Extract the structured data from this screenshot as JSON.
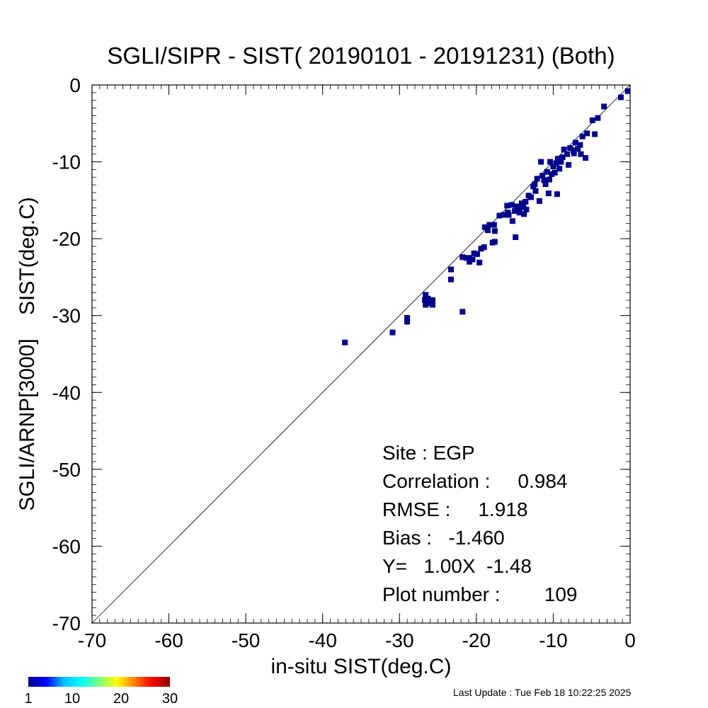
{
  "chart_data": {
    "type": "heatmap",
    "title": "SGLI/SIPR - SIST( 20190101 - 20191231) (Both)",
    "xlabel": "in-situ SIST(deg.C)",
    "ylabel": "SGLI/ARNP[3000]    SIST(deg.C)",
    "xlim": [
      -70,
      0
    ],
    "ylim": [
      -70,
      0
    ],
    "x_ticks": [
      "-70",
      "-60",
      "-50",
      "-40",
      "-30",
      "-20",
      "-10",
      "0"
    ],
    "y_ticks": [
      "-70",
      "-60",
      "-50",
      "-40",
      "-30",
      "-20",
      "-10",
      "0"
    ],
    "reference_line": "y = x",
    "bin_color": "#00008b",
    "points": [
      [
        -37.1,
        -33.5
      ],
      [
        -30.9,
        -32.2
      ],
      [
        -29.0,
        -30.8
      ],
      [
        -29.0,
        -30.3
      ],
      [
        -26.7,
        -28.0
      ],
      [
        -26.6,
        -28.6
      ],
      [
        -26.6,
        -27.3
      ],
      [
        -26.2,
        -28.4
      ],
      [
        -26.0,
        -28.3
      ],
      [
        -25.7,
        -28.0
      ],
      [
        -25.7,
        -28.6
      ],
      [
        -26.3,
        -27.8
      ],
      [
        -23.3,
        -25.3
      ],
      [
        -23.3,
        -24.0
      ],
      [
        -21.8,
        -29.5
      ],
      [
        -21.8,
        -22.4
      ],
      [
        -21.3,
        -22.5
      ],
      [
        -20.9,
        -22.5
      ],
      [
        -20.9,
        -23.0
      ],
      [
        -20.5,
        -22.7
      ],
      [
        -20.3,
        -21.9
      ],
      [
        -19.9,
        -22.0
      ],
      [
        -19.6,
        -23.1
      ],
      [
        -19.4,
        -21.3
      ],
      [
        -19.0,
        -21.1
      ],
      [
        -18.9,
        -18.5
      ],
      [
        -18.5,
        -18.9
      ],
      [
        -18.3,
        -18.2
      ],
      [
        -17.9,
        -20.5
      ],
      [
        -17.6,
        -20.4
      ],
      [
        -17.6,
        -19.0
      ],
      [
        -17.7,
        -18.2
      ],
      [
        -17.0,
        -17.0
      ],
      [
        -16.5,
        -16.9
      ],
      [
        -16.0,
        -15.7
      ],
      [
        -15.8,
        -16.9
      ],
      [
        -15.4,
        -15.6
      ],
      [
        -15.3,
        -17.7
      ],
      [
        -15.0,
        -16.4
      ],
      [
        -14.9,
        -19.8
      ],
      [
        -14.8,
        -15.8
      ],
      [
        -14.6,
        -16.0
      ],
      [
        -14.4,
        -16.6
      ],
      [
        -14.1,
        -15.4
      ],
      [
        -13.9,
        -15.9
      ],
      [
        -13.6,
        -15.2
      ],
      [
        -13.5,
        -16.2
      ],
      [
        -13.2,
        -14.4
      ],
      [
        -12.9,
        -14.6
      ],
      [
        -12.6,
        -13.2
      ],
      [
        -12.3,
        -13.8
      ],
      [
        -12.1,
        -12.2
      ],
      [
        -11.8,
        -15.1
      ],
      [
        -11.6,
        -10.0
      ],
      [
        -11.4,
        -11.8
      ],
      [
        -11.2,
        -12.4
      ],
      [
        -10.8,
        -11.3
      ],
      [
        -10.6,
        -14.1
      ],
      [
        -10.5,
        -12.3
      ],
      [
        -10.2,
        -11.6
      ],
      [
        -10.0,
        -10.6
      ],
      [
        -9.8,
        -11.4
      ],
      [
        -9.6,
        -10.2
      ],
      [
        -9.5,
        -14.2
      ],
      [
        -9.2,
        -10.9
      ],
      [
        -9.0,
        -10.0
      ],
      [
        -8.8,
        -9.4
      ],
      [
        -8.6,
        -8.4
      ],
      [
        -8.2,
        -9.0
      ],
      [
        -8.0,
        -10.4
      ],
      [
        -7.8,
        -8.2
      ],
      [
        -7.4,
        -8.5
      ],
      [
        -7.1,
        -7.5
      ],
      [
        -6.8,
        -8.3
      ],
      [
        -6.5,
        -7.8
      ],
      [
        -6.2,
        -6.7
      ],
      [
        -5.8,
        -9.5
      ],
      [
        -5.6,
        -6.3
      ],
      [
        -4.9,
        -4.6
      ],
      [
        -4.6,
        -6.4
      ],
      [
        -4.2,
        -4.3
      ],
      [
        -3.4,
        -2.8
      ],
      [
        -1.2,
        -1.6
      ],
      [
        -0.3,
        -0.8
      ],
      [
        -13.8,
        -16.8
      ],
      [
        -12.4,
        -12.9
      ],
      [
        -11.0,
        -12.9
      ],
      [
        -15.9,
        -16.6
      ],
      [
        -7.3,
        -8.9
      ],
      [
        -6.4,
        -9.0
      ],
      [
        -10.4,
        -10.0
      ],
      [
        -9.4,
        -9.6
      ]
    ],
    "stats": {
      "site": "Site : EGP",
      "correlation": "Correlation :     0.984",
      "rmse": "RMSE :     1.918",
      "bias": "Bias :   -1.460",
      "regression": "Y=   1.00X  -1.48",
      "plot_number": "Plot number :        109"
    },
    "colorbar": {
      "colors": [
        "#00008b",
        "#0000ff",
        "#00bfff",
        "#00ffff",
        "#7fff7f",
        "#ffff00",
        "#ff7f00",
        "#ff0000",
        "#8b0000"
      ],
      "ticks": [
        "1",
        "10",
        "20",
        "30"
      ]
    }
  },
  "footer": {
    "last_update": "Last Update : Tue Feb 18 10:22:25 2025"
  }
}
